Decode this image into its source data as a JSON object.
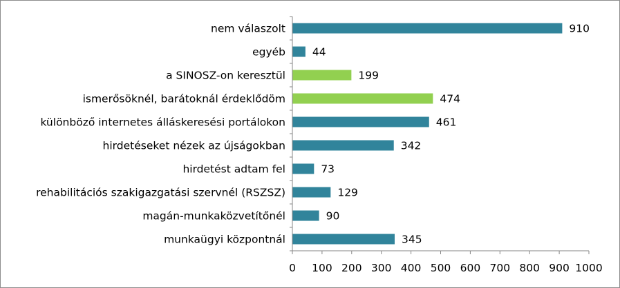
{
  "chart_data": {
    "type": "bar",
    "orientation": "horizontal",
    "title": "",
    "xlabel": "",
    "ylabel": "",
    "xlim": [
      0,
      1000
    ],
    "x_ticks": [
      "0",
      "100",
      "200",
      "300",
      "400",
      "500",
      "600",
      "700",
      "800",
      "900",
      "1000"
    ],
    "grid": false,
    "legend": "none",
    "categories": [
      "nem válaszolt",
      "egyéb",
      "a SINOSZ-on keresztül",
      "ismerősöknél, barátoknál érdeklődöm",
      "különböző internetes álláskeresési portálokon",
      "hirdetéseket nézek az újságokban",
      "hirdetést adtam fel",
      "rehabilitációs szakigazgatási szervnél (RSZSZ)",
      "magán-munkaközvetítőnél",
      "munkaügyi központnál"
    ],
    "values": [
      910,
      44,
      199,
      474,
      461,
      342,
      73,
      129,
      90,
      345
    ],
    "value_labels": [
      "910",
      "44",
      "199",
      "474",
      "461",
      "342",
      "73",
      "129",
      "90",
      "345"
    ],
    "bar_colors": [
      "#31849b",
      "#31849b",
      "#92d050",
      "#92d050",
      "#31849b",
      "#31849b",
      "#31849b",
      "#31849b",
      "#31849b",
      "#31849b"
    ]
  }
}
